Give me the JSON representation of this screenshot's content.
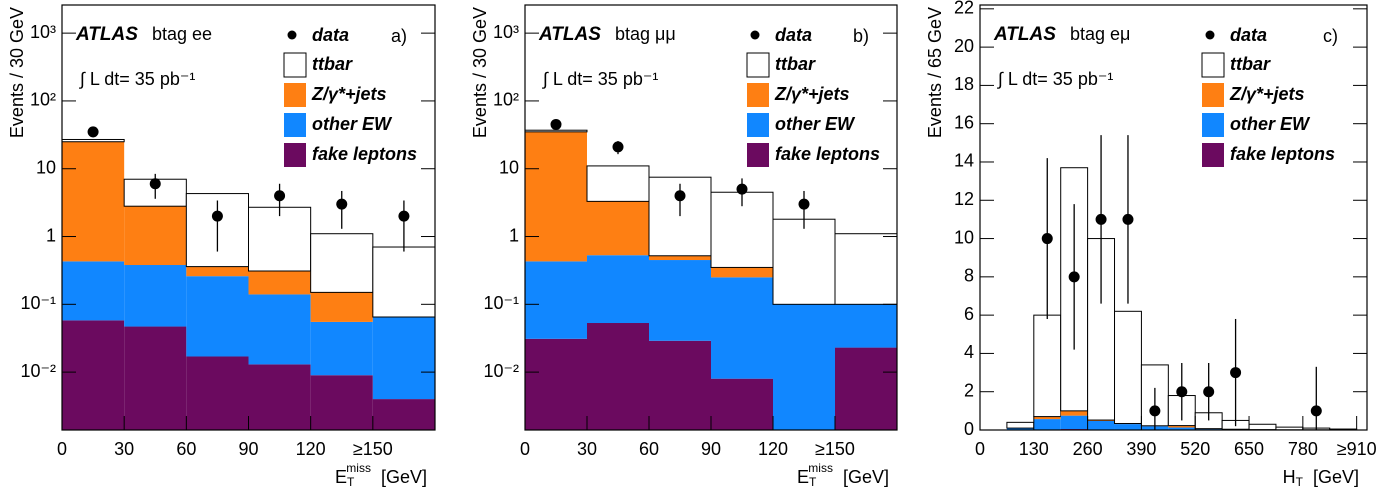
{
  "chart_data": [
    {
      "type": "stacked-histogram",
      "log_y": true,
      "atlas": "ATLAS",
      "channel": "btag ee",
      "lumi": "∫ L dt= 35 pb⁻¹",
      "panel": "a)",
      "y_label": "Events / 30 GeV",
      "x_label": {
        "main": "E",
        "sub": "T",
        "sup": "miss",
        "unit": "[GeV]"
      },
      "bins": [
        0,
        30,
        60,
        90,
        120,
        150,
        180
      ],
      "xlim": [
        0,
        180
      ],
      "xticks": [
        0,
        30,
        60,
        90,
        120,
        {
          "value": 150,
          "label": "≥150"
        }
      ],
      "ylim": [
        0.0014,
        2600
      ],
      "yticks": [
        {
          "value": 0.01,
          "label": "10⁻²"
        },
        {
          "value": 0.1,
          "label": "10⁻¹"
        },
        1,
        10,
        {
          "value": 100,
          "label": "10²"
        },
        {
          "value": 1000,
          "label": "10³"
        }
      ],
      "series": [
        {
          "name": "fake leptons",
          "color": "#6b0a5f",
          "values": [
            0.058,
            0.047,
            0.017,
            0.013,
            0.009,
            0.004
          ]
        },
        {
          "name": "other EW",
          "color": "#1187ff",
          "values": [
            0.372,
            0.333,
            0.243,
            0.127,
            0.046,
            0.061
          ]
        },
        {
          "name": "Z/γ*+jets",
          "color": "#fe7f13",
          "values": [
            24.57,
            2.42,
            0.1,
            0.17,
            0.095,
            0
          ]
        },
        {
          "name": "ttbar",
          "color": "#ffffff",
          "values": [
            2,
            4.2,
            3.94,
            2.39,
            0.95,
            0.635
          ]
        }
      ],
      "data": {
        "name": "data",
        "color": "#000000",
        "x": [
          15,
          45,
          75,
          105,
          135,
          165
        ],
        "values": [
          35,
          6,
          2,
          4,
          3,
          2
        ],
        "errors": [
          5.9,
          2.4,
          1.4,
          2,
          1.7,
          1.4
        ]
      }
    },
    {
      "type": "stacked-histogram",
      "log_y": true,
      "atlas": "ATLAS",
      "channel": "btag μμ",
      "lumi": "∫ L dt= 35 pb⁻¹",
      "panel": "b)",
      "y_label": "Events / 30 GeV",
      "x_label": {
        "main": "E",
        "sub": "T",
        "sup": "miss",
        "unit": "[GeV]"
      },
      "bins": [
        0,
        30,
        60,
        90,
        120,
        150,
        180
      ],
      "xlim": [
        0,
        180
      ],
      "xticks": [
        0,
        30,
        60,
        90,
        120,
        {
          "value": 150,
          "label": "≥150"
        }
      ],
      "ylim": [
        0.0014,
        2600
      ],
      "yticks": [
        {
          "value": 0.01,
          "label": "10⁻²"
        },
        {
          "value": 0.1,
          "label": "10⁻¹"
        },
        1,
        10,
        {
          "value": 100,
          "label": "10²"
        },
        {
          "value": 1000,
          "label": "10³"
        }
      ],
      "series": [
        {
          "name": "fake leptons",
          "color": "#6b0a5f",
          "values": [
            0.031,
            0.053,
            0.029,
            0.008,
            0,
            0.023
          ]
        },
        {
          "name": "other EW",
          "color": "#1187ff",
          "values": [
            0.399,
            0.477,
            0.421,
            0.242,
            0.1,
            0.077
          ]
        },
        {
          "name": "Z/γ*+jets",
          "color": "#fe7f13",
          "values": [
            34.57,
            2.77,
            0.07,
            0.1,
            0,
            0
          ]
        },
        {
          "name": "ttbar",
          "color": "#ffffff",
          "values": [
            2,
            7.7,
            6.98,
            4.15,
            1.7,
            1
          ]
        }
      ],
      "data": {
        "name": "data",
        "color": "#000000",
        "x": [
          15,
          45,
          75,
          105,
          135
        ],
        "values": [
          45,
          21,
          4,
          5,
          3
        ],
        "errors": [
          6.7,
          4.6,
          2,
          2.2,
          1.7
        ]
      }
    },
    {
      "type": "stacked-histogram",
      "log_y": false,
      "atlas": "ATLAS",
      "channel": "btag eμ",
      "lumi": "∫ L dt= 35 pb⁻¹",
      "panel": "c)",
      "y_label": "Events / 65 GeV",
      "x_label": {
        "main": "H",
        "sub": "T",
        "unit": "[GeV]"
      },
      "bins": [
        65,
        130,
        195,
        260,
        325,
        390,
        455,
        520,
        585,
        650,
        715,
        780,
        845,
        910
      ],
      "xlim": [
        0,
        935
      ],
      "xticks": [
        0,
        130,
        260,
        390,
        520,
        650,
        780,
        {
          "value": 910,
          "label": "≥910"
        }
      ],
      "ylim": [
        0,
        22.2
      ],
      "yticks": [
        0,
        2,
        4,
        6,
        8,
        10,
        12,
        14,
        16,
        18,
        20,
        22
      ],
      "series": [
        {
          "name": "fake leptons",
          "color": "#6b0a5f",
          "values": [
            0,
            0.02,
            0.05,
            0.02,
            0.01,
            0,
            0.01,
            0,
            0,
            0,
            0,
            0,
            0
          ]
        },
        {
          "name": "other EW",
          "color": "#1187ff",
          "values": [
            0.1,
            0.55,
            0.7,
            0.45,
            0.3,
            0.2,
            0.12,
            0.05,
            0.04,
            0.02,
            0.01,
            0.01,
            0
          ]
        },
        {
          "name": "Z/γ*+jets",
          "color": "#fe7f13",
          "values": [
            0,
            0.13,
            0.25,
            0.05,
            0.03,
            0.02,
            0.1,
            0.02,
            0,
            0,
            0,
            0,
            0
          ]
        },
        {
          "name": "ttbar",
          "color": "#ffffff",
          "values": [
            0.3,
            5.3,
            12.7,
            9.48,
            5.86,
            3.18,
            1.57,
            0.83,
            0.46,
            0.28,
            0.14,
            0.09,
            0.05
          ]
        }
      ],
      "data": {
        "name": "data",
        "color": "#000000",
        "x": [
          162.5,
          227.5,
          292.5,
          357.5,
          422.5,
          487.5,
          552.5,
          617.5,
          812.5
        ],
        "values": [
          10,
          8,
          11,
          11,
          1,
          2,
          2,
          3,
          1
        ],
        "errors": [
          4.2,
          3.8,
          4.4,
          4.4,
          1.2,
          1.5,
          1.5,
          2.8,
          2.3
        ]
      }
    }
  ]
}
